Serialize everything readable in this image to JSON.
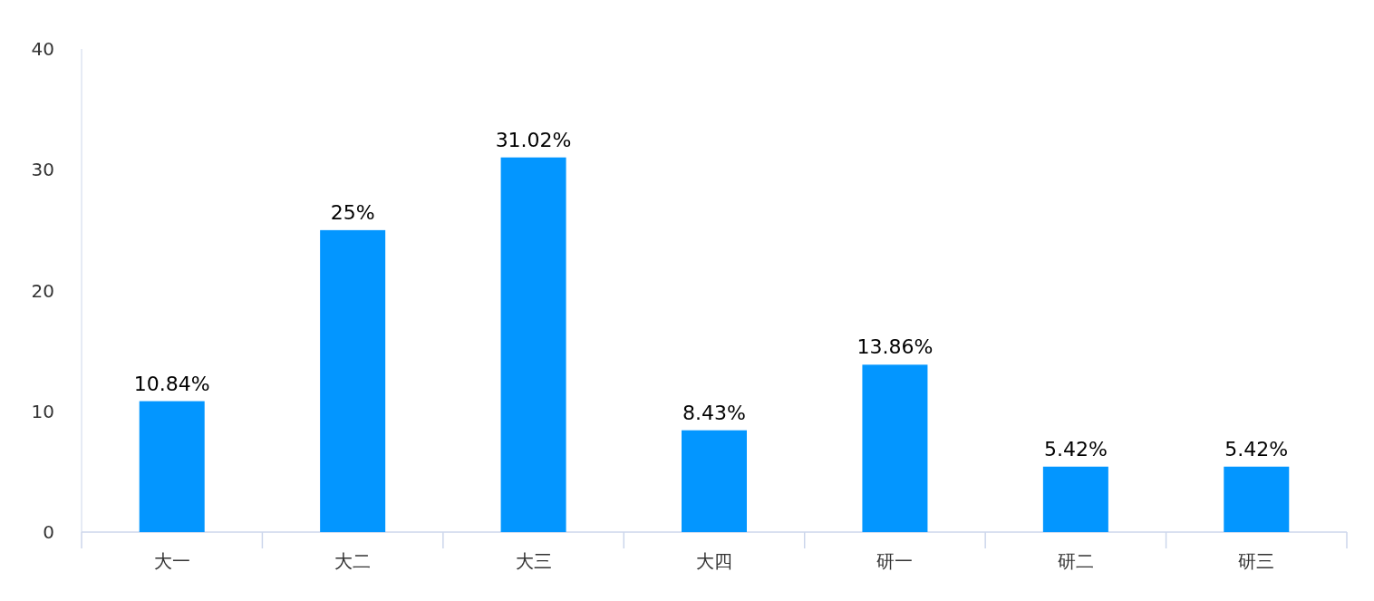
{
  "chart_data": {
    "type": "bar",
    "categories": [
      "大一",
      "大二",
      "大三",
      "大四",
      "研一",
      "研二",
      "研三"
    ],
    "values": [
      10.84,
      25,
      31.02,
      8.43,
      13.86,
      5.42,
      5.42
    ],
    "value_labels": [
      "10.84%",
      "25%",
      "31.02%",
      "8.43%",
      "13.86%",
      "5.42%",
      "5.42%"
    ],
    "color": "#0396ff",
    "ylim": [
      0,
      40
    ],
    "yticks": [
      0,
      10,
      20,
      30,
      40
    ],
    "grid": false
  }
}
